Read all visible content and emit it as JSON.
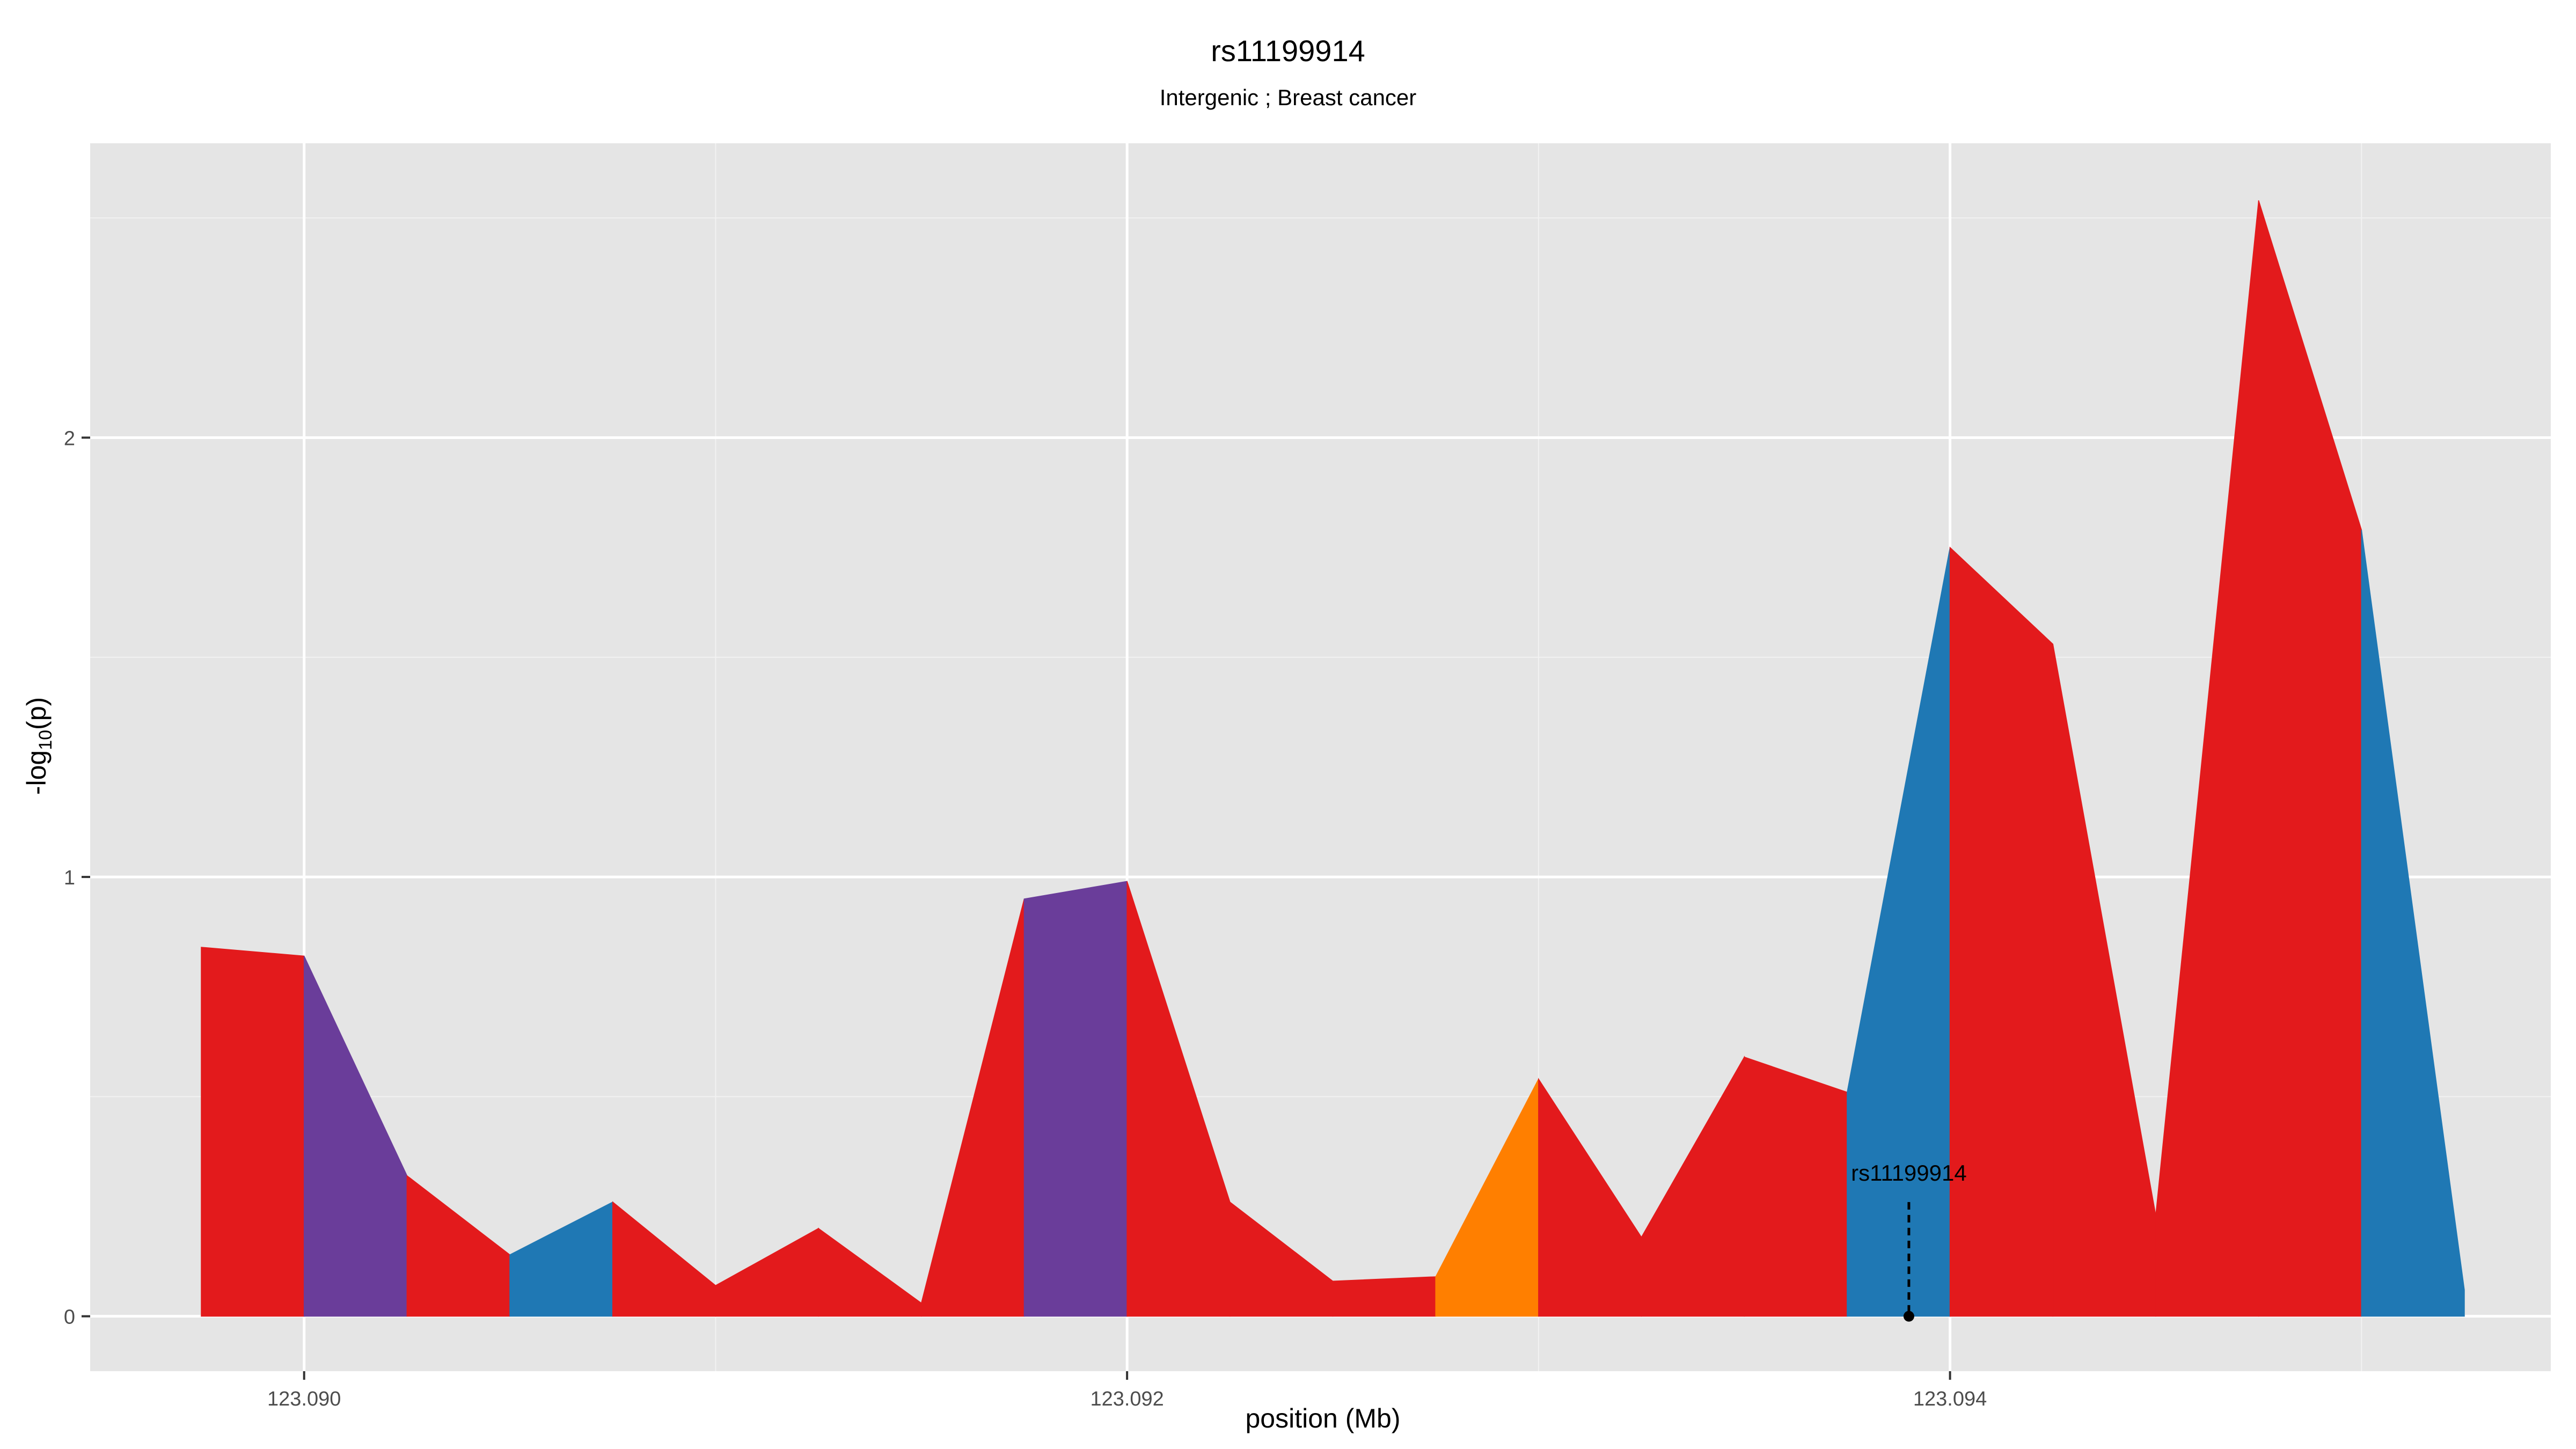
{
  "title": "rs11199914",
  "subtitle": "Intergenic ; Breast cancer",
  "colors": {
    "panel_background": "#e5e5e5",
    "grid_major": "#ffffff",
    "red": "#e31a1c",
    "purple": "#6a3d9a",
    "blue": "#1f78b4",
    "orange": "#ff7f00"
  },
  "chart_data": {
    "type": "area",
    "xlabel": "position (Mb)",
    "ylabel": {
      "prefix": "-log",
      "sub": "10",
      "suffix": "(p)"
    },
    "xlim": [
      123.08948,
      123.09546
    ],
    "ylim": [
      -0.125,
      2.67
    ],
    "x_ticks": [
      {
        "value": 123.09,
        "label": "123.090"
      },
      {
        "value": 123.092,
        "label": "123.092"
      },
      {
        "value": 123.094,
        "label": "123.094"
      }
    ],
    "x_minor": [
      123.091,
      123.093,
      123.095
    ],
    "y_ticks": [
      {
        "value": 0,
        "label": "0"
      },
      {
        "value": 1,
        "label": "1"
      },
      {
        "value": 2,
        "label": "2"
      }
    ],
    "y_minor": [
      0.5,
      1.5,
      2.5
    ],
    "grid": true,
    "points": [
      {
        "x": 123.08975,
        "y": 0.84
      },
      {
        "x": 123.09,
        "y": 0.82
      },
      {
        "x": 123.09025,
        "y": 0.32
      },
      {
        "x": 123.0905,
        "y": 0.14
      },
      {
        "x": 123.09075,
        "y": 0.26
      },
      {
        "x": 123.091,
        "y": 0.07
      },
      {
        "x": 123.09125,
        "y": 0.2
      },
      {
        "x": 123.0915,
        "y": 0.03
      },
      {
        "x": 123.09175,
        "y": 0.95
      },
      {
        "x": 123.092,
        "y": 0.99
      },
      {
        "x": 123.09225,
        "y": 0.26
      },
      {
        "x": 123.0925,
        "y": 0.08
      },
      {
        "x": 123.09275,
        "y": 0.09
      },
      {
        "x": 123.093,
        "y": 0.54
      },
      {
        "x": 123.09325,
        "y": 0.18
      },
      {
        "x": 123.0935,
        "y": 0.59
      },
      {
        "x": 123.09375,
        "y": 0.51
      },
      {
        "x": 123.094,
        "y": 1.75
      },
      {
        "x": 123.09425,
        "y": 1.53
      },
      {
        "x": 123.0945,
        "y": 0.23
      },
      {
        "x": 123.09475,
        "y": 2.54
      },
      {
        "x": 123.095,
        "y": 1.79
      },
      {
        "x": 123.09525,
        "y": 0.06
      }
    ],
    "segment_colors": [
      "red",
      "purple",
      "red",
      "blue",
      "red",
      "red",
      "red",
      "red",
      "purple",
      "red",
      "red",
      "red",
      "orange",
      "red",
      "red",
      "red",
      "blue",
      "red",
      "red",
      "red",
      "red",
      "blue"
    ],
    "annotation": {
      "label": "rs11199914",
      "x": 123.0939,
      "y": 0,
      "line_top_y": 0.26
    }
  }
}
